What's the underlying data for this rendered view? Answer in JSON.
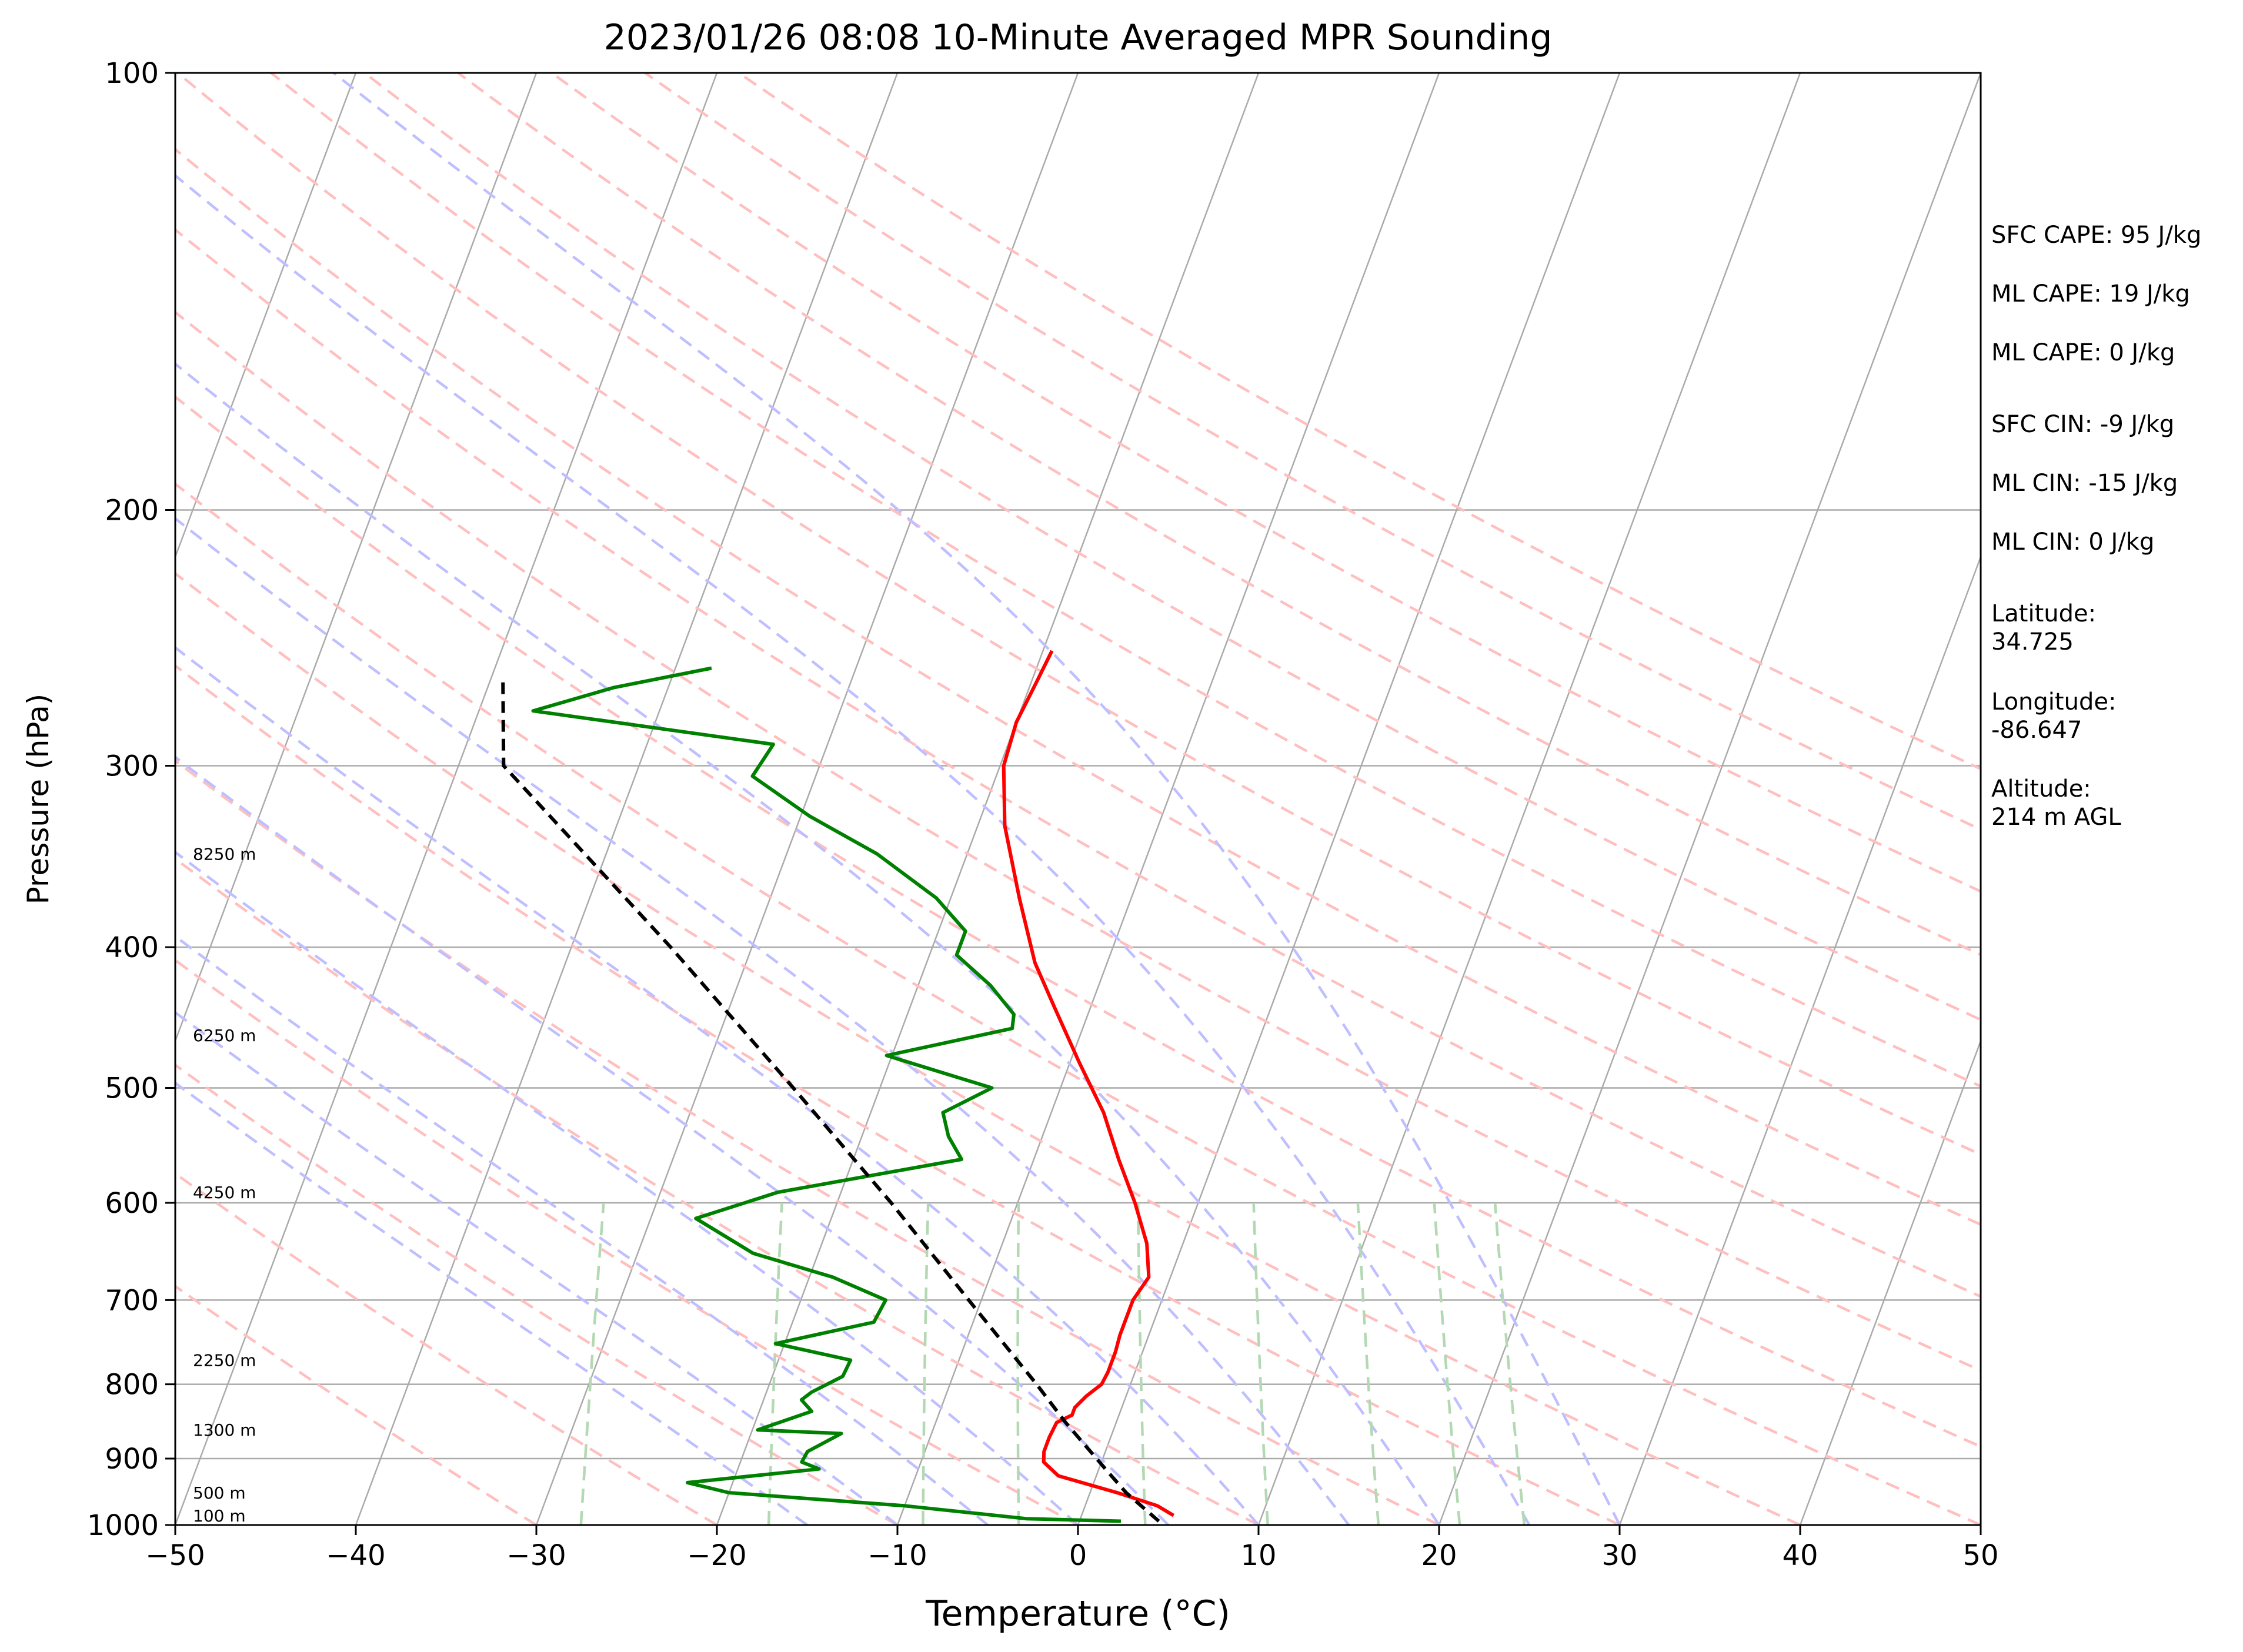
{
  "chart_data": {
    "type": "skew-t log-p",
    "title": "2023/01/26 08:08 10-Minute Averaged MPR Sounding",
    "xlabel": "Temperature (°C)",
    "ylabel": "Pressure (hPa)",
    "xlim": [
      -50,
      50
    ],
    "ylim": [
      1000,
      100
    ],
    "x_ticks": [
      -50,
      -40,
      -30,
      -20,
      -10,
      0,
      10,
      20,
      30,
      40,
      50
    ],
    "x_tick_labels": [
      "−50",
      "−40",
      "−30",
      "−20",
      "−10",
      "0",
      "10",
      "20",
      "30",
      "40",
      "50"
    ],
    "y_ticks": [
      1000,
      900,
      800,
      700,
      600,
      500,
      400,
      300,
      200,
      100
    ],
    "y_tick_labels": [
      "1000",
      "900",
      "800",
      "700",
      "600",
      "500",
      "400",
      "300",
      "200",
      "100"
    ],
    "y_scale": "log",
    "isobars_gridlines": [
      900,
      800,
      700,
      600,
      500,
      400,
      300,
      200
    ],
    "isotherm_interval": 10,
    "dry_adiabats_theta_c": [
      -30,
      -20,
      -10,
      0,
      10,
      20,
      30,
      40,
      50,
      60,
      70,
      80,
      90,
      100,
      110,
      120,
      130,
      140,
      150,
      160
    ],
    "moist_adiabats_start_c": [
      -15,
      -10,
      -5,
      0,
      5,
      10,
      15,
      20,
      25,
      30
    ],
    "mixing_ratio_lines_gkg": [
      0.4,
      1,
      2,
      3,
      5,
      8,
      12,
      16,
      20
    ],
    "series": [
      {
        "name": "Temperature",
        "color": "#ff0000",
        "points": [
          [
            985,
            5.1
          ],
          [
            970,
            4.0
          ],
          [
            950,
            1.5
          ],
          [
            925,
            -2.1
          ],
          [
            905,
            -3.2
          ],
          [
            890,
            -3.4
          ],
          [
            870,
            -3.4
          ],
          [
            850,
            -3.3
          ],
          [
            840,
            -2.6
          ],
          [
            830,
            -2.6
          ],
          [
            815,
            -2.2
          ],
          [
            800,
            -1.6
          ],
          [
            785,
            -1.5
          ],
          [
            760,
            -1.5
          ],
          [
            740,
            -1.6
          ],
          [
            700,
            -1.6
          ],
          [
            675,
            -1.2
          ],
          [
            640,
            -2.0
          ],
          [
            600,
            -3.5
          ],
          [
            560,
            -5.3
          ],
          [
            520,
            -7.1
          ],
          [
            480,
            -9.5
          ],
          [
            440,
            -12.0
          ],
          [
            410,
            -14.0
          ],
          [
            370,
            -16.2
          ],
          [
            330,
            -18.5
          ],
          [
            300,
            -19.8
          ],
          [
            280,
            -20.0
          ],
          [
            262,
            -19.7
          ],
          [
            250,
            -19.5
          ]
        ]
      },
      {
        "name": "Dewpoint",
        "color": "#008000",
        "points": [
          [
            994,
            2.3
          ],
          [
            990,
            -3.0
          ],
          [
            970,
            -10.0
          ],
          [
            950,
            -20.0
          ],
          [
            935,
            -22.5
          ],
          [
            915,
            -15.5
          ],
          [
            905,
            -16.6
          ],
          [
            890,
            -16.5
          ],
          [
            865,
            -15.0
          ],
          [
            860,
            -19.7
          ],
          [
            835,
            -17.1
          ],
          [
            820,
            -17.9
          ],
          [
            810,
            -17.5
          ],
          [
            790,
            -16.1
          ],
          [
            770,
            -16.0
          ],
          [
            750,
            -20.5
          ],
          [
            725,
            -15.5
          ],
          [
            700,
            -15.3
          ],
          [
            675,
            -18.7
          ],
          [
            650,
            -23.6
          ],
          [
            615,
            -27.5
          ],
          [
            590,
            -23.5
          ],
          [
            560,
            -14.0
          ],
          [
            540,
            -15.2
          ],
          [
            520,
            -16.0
          ],
          [
            500,
            -13.8
          ],
          [
            475,
            -20.3
          ],
          [
            455,
            -13.9
          ],
          [
            445,
            -14.1
          ],
          [
            425,
            -16.0
          ],
          [
            405,
            -18.5
          ],
          [
            390,
            -18.5
          ],
          [
            370,
            -20.8
          ],
          [
            345,
            -25.0
          ],
          [
            325,
            -29.5
          ],
          [
            305,
            -33.5
          ],
          [
            290,
            -33.0
          ],
          [
            275,
            -47.0
          ],
          [
            265,
            -43.0
          ],
          [
            257,
            -38.0
          ]
        ]
      },
      {
        "name": "Parcel",
        "color": "#000000",
        "style": "dashed",
        "points": [
          [
            994,
            4.4
          ],
          [
            950,
            2.0
          ],
          [
            920,
            0.6
          ],
          [
            850,
            -2.8
          ],
          [
            800,
            -5.2
          ],
          [
            700,
            -10.7
          ],
          [
            600,
            -17.0
          ],
          [
            500,
            -24.8
          ],
          [
            400,
            -34.5
          ],
          [
            300,
            -47.5
          ],
          [
            262,
            -49.3
          ]
        ]
      }
    ],
    "height_labels": [
      {
        "text": "100 m",
        "p": 985
      },
      {
        "text": "500 m",
        "p": 950
      },
      {
        "text": "1300 m",
        "p": 860
      },
      {
        "text": "2250 m",
        "p": 770
      },
      {
        "text": "4250 m",
        "p": 590
      },
      {
        "text": "6250 m",
        "p": 460
      },
      {
        "text": "8250 m",
        "p": 345
      }
    ],
    "annotations": [
      "SFC CAPE: 95 J/kg",
      "ML CAPE: 19 J/kg",
      "ML CAPE: 0 J/kg",
      "SFC CIN: -9 J/kg",
      "ML CIN: -15 J/kg",
      "ML CIN: 0 J/kg",
      "Latitude:\n34.725",
      "Longitude:\n-86.647",
      "Altitude:\n214 m AGL"
    ],
    "colors": {
      "isotherm": "#aaaaaa",
      "isobar": "#aaaaaa",
      "dry_adiabat": "#ffbfbf",
      "moist_adiabat": "#bfbfff",
      "mixing_ratio": "#b3d9b3"
    }
  },
  "panel": {
    "sfc_cape": "SFC CAPE: 95 J/kg",
    "ml_cape_1": "ML CAPE: 19 J/kg",
    "ml_cape_2": "ML CAPE: 0 J/kg",
    "sfc_cin": "SFC CIN: -9 J/kg",
    "ml_cin_1": "ML CIN: -15 J/kg",
    "ml_cin_2": "ML CIN: 0 J/kg",
    "latitude_label": "Latitude:",
    "latitude_value": "34.725",
    "longitude_label": "Longitude:",
    "longitude_value": "-86.647",
    "altitude_label": "Altitude:",
    "altitude_value": "214 m AGL"
  }
}
